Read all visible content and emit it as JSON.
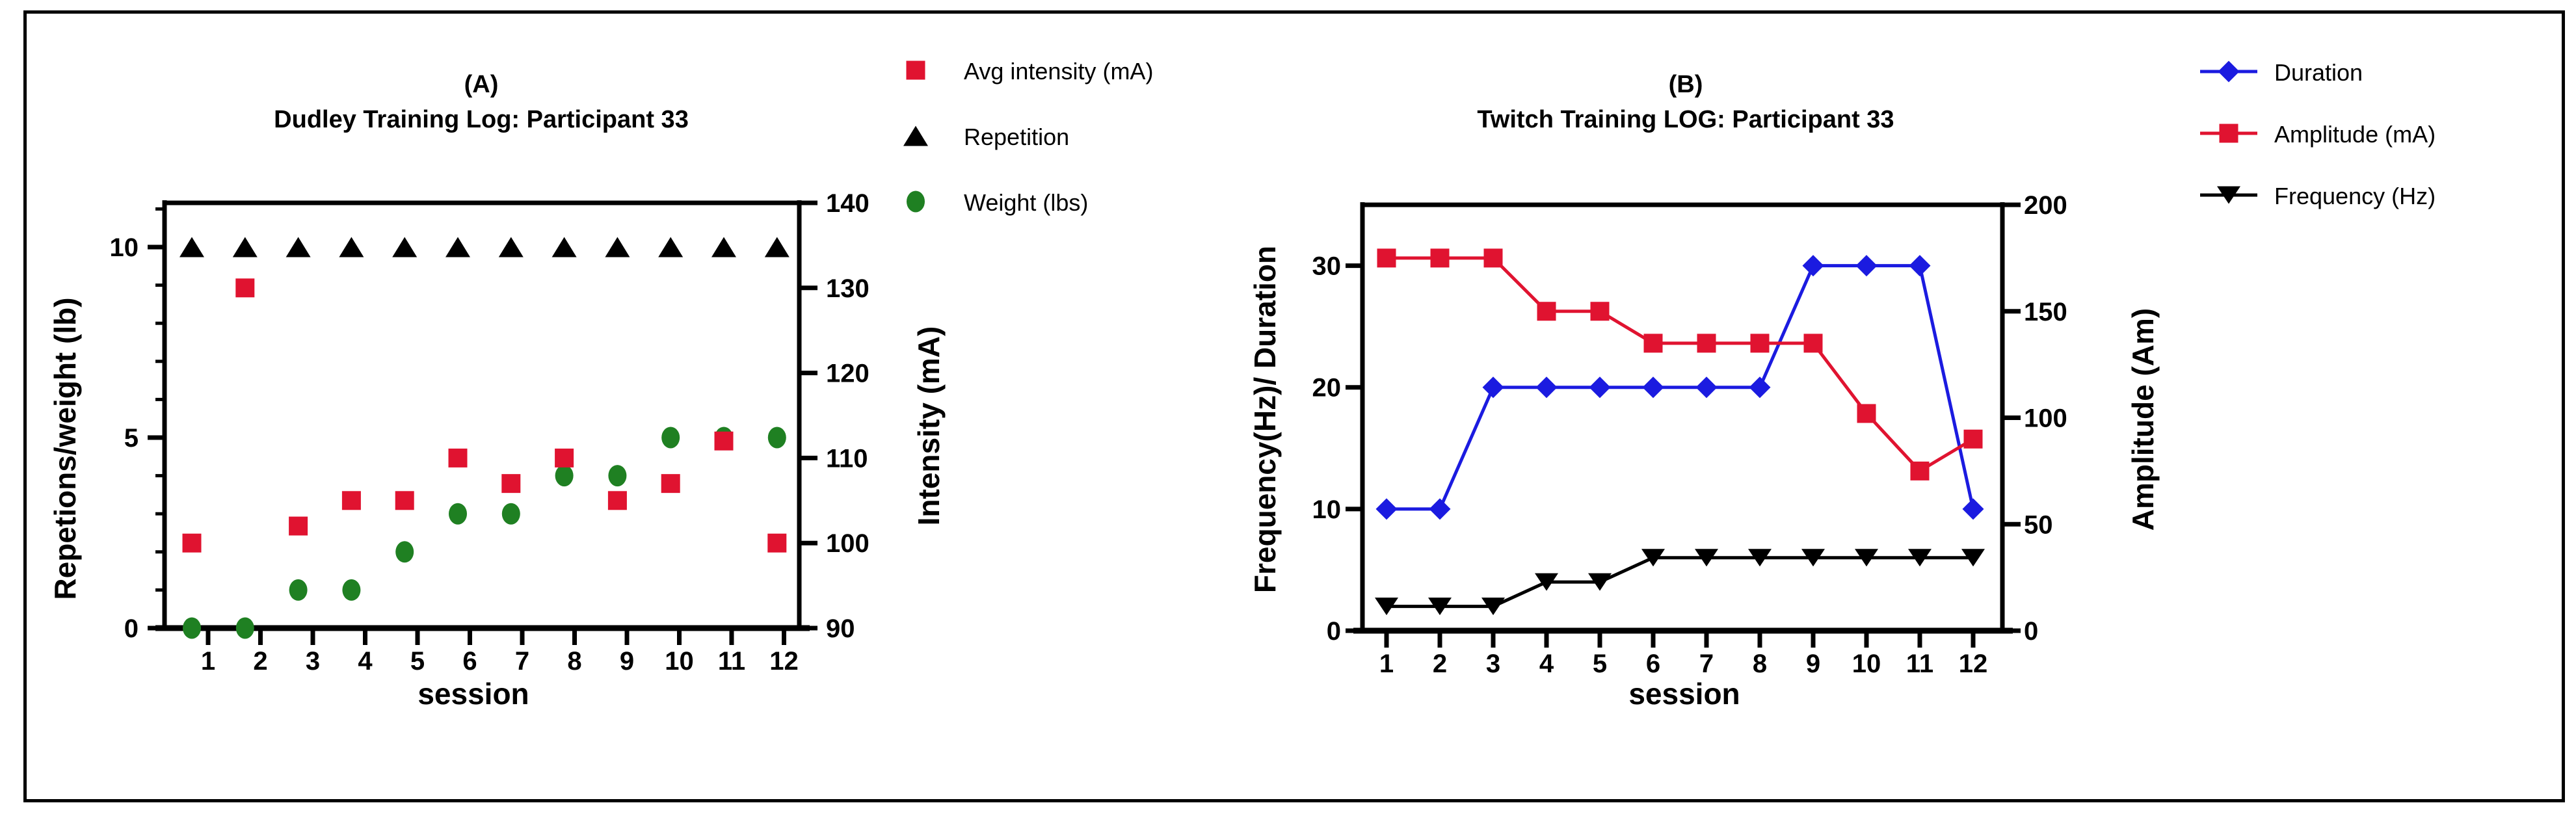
{
  "page": {
    "background": "#ffffff",
    "frame_color": "#000000",
    "text_color": "#000000"
  },
  "colors": {
    "red": "#e01330",
    "green": "#1f8022",
    "blue": "#1b1be0",
    "black": "#000000"
  },
  "chart_data": [
    {
      "panel": "A",
      "type": "scatter",
      "title": "(A)",
      "subtitle": "Dudley Training Log: Participant 33",
      "xlabel": "session",
      "ylabel_left": "Repetions/weight (lb)",
      "ylabel_right": "Intensity (mA)",
      "x": [
        1,
        2,
        3,
        4,
        5,
        6,
        7,
        8,
        9,
        10,
        11,
        12
      ],
      "ylim_left": [
        0,
        11.16
      ],
      "yticks_left": [
        0,
        5,
        10
      ],
      "yminor_left": [
        1,
        2,
        3,
        4,
        6,
        7,
        8,
        9,
        11
      ],
      "ylim_right": [
        90,
        140
      ],
      "yticks_right": [
        90,
        100,
        110,
        120,
        130,
        140
      ],
      "grid": false,
      "legend_position": "outside-top-right",
      "series": [
        {
          "name": "Avg intensity (mA)",
          "axis": "right",
          "marker": "square",
          "color": "#e01330",
          "line": false,
          "values": [
            100,
            130,
            102,
            105,
            105,
            110,
            107,
            110,
            105,
            107,
            112,
            100
          ]
        },
        {
          "name": "Repetition",
          "axis": "left",
          "marker": "triangle-up",
          "color": "#000000",
          "line": false,
          "values": [
            10,
            10,
            10,
            10,
            10,
            10,
            10,
            10,
            10,
            10,
            10,
            10
          ]
        },
        {
          "name": "Weight (lbs)",
          "axis": "left",
          "marker": "circle",
          "color": "#1f8022",
          "line": false,
          "values": [
            0,
            0,
            1,
            1,
            2,
            3,
            3,
            4,
            4,
            5,
            5,
            5
          ]
        }
      ]
    },
    {
      "panel": "B",
      "type": "line",
      "title": "(B)",
      "subtitle": "Twitch Training LOG: Participant 33",
      "xlabel": "session",
      "ylabel_left": "Frequency(Hz)/ Duration",
      "ylabel_right": "Amplitude (Am)",
      "x": [
        1,
        2,
        3,
        4,
        5,
        6,
        7,
        8,
        9,
        10,
        11,
        12
      ],
      "ylim_left": [
        0,
        35
      ],
      "yticks_left": [
        0,
        10,
        20,
        30
      ],
      "yminor_left": [],
      "ylim_right": [
        0,
        200
      ],
      "yticks_right": [
        0,
        50,
        100,
        150,
        200
      ],
      "grid": false,
      "legend_position": "outside-top-right",
      "series": [
        {
          "name": "Duration",
          "axis": "left",
          "marker": "diamond",
          "color": "#1b1be0",
          "line": true,
          "values": [
            10,
            10,
            20,
            20,
            20,
            20,
            20,
            20,
            30,
            30,
            30,
            10
          ]
        },
        {
          "name": "Amplitude (mA)",
          "axis": "right",
          "marker": "square",
          "color": "#e01330",
          "line": true,
          "values": [
            175,
            175,
            175,
            150,
            150,
            135,
            135,
            135,
            135,
            102,
            75,
            90
          ]
        },
        {
          "name": "Frequency (Hz)",
          "axis": "left",
          "marker": "triangle-down",
          "color": "#000000",
          "line": true,
          "values": [
            2,
            2,
            2,
            4,
            4,
            6,
            6,
            6,
            6,
            6,
            6,
            6
          ]
        }
      ]
    }
  ]
}
